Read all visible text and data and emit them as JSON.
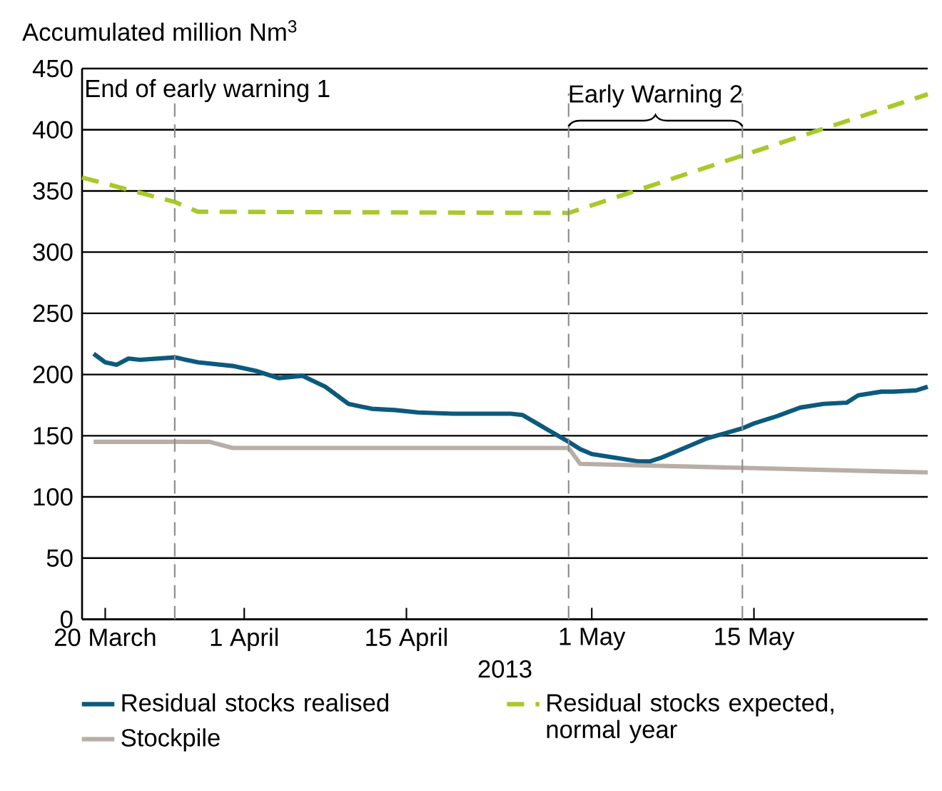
{
  "chart_data": {
    "type": "line",
    "ylabel": "Accumulated million Nm$^{3}$",
    "xlabel": "2013",
    "xlim": [
      "2013-03-18",
      "2013-05-30"
    ],
    "xticks": [
      {
        "value": "2013-03-20",
        "label": "20 March"
      },
      {
        "value": "2013-04-01",
        "label": "1 April"
      },
      {
        "value": "2013-04-15",
        "label": "15 April"
      },
      {
        "value": "2013-05-01",
        "label": "1 May"
      },
      {
        "value": "2013-05-15",
        "label": "15 May"
      }
    ],
    "ylim": [
      0,
      450
    ],
    "yticks": [
      0,
      50,
      100,
      150,
      200,
      250,
      300,
      350,
      400,
      450
    ],
    "grid": "y",
    "legend": "bottom",
    "marker": "none",
    "series": [
      {
        "name": "Residual stocks realised",
        "color": "#0b5a7d",
        "line_style": "solid",
        "x": [
          "2013-03-19",
          "2013-03-20",
          "2013-03-21",
          "2013-03-22",
          "2013-03-23",
          "2013-03-26",
          "2013-03-28",
          "2013-03-31",
          "2013-04-02",
          "2013-04-04",
          "2013-04-06",
          "2013-04-08",
          "2013-04-10",
          "2013-04-12",
          "2013-04-14",
          "2013-04-16",
          "2013-04-19",
          "2013-04-24",
          "2013-04-25",
          "2013-04-27",
          "2013-04-29",
          "2013-04-30",
          "2013-05-01",
          "2013-05-03",
          "2013-05-05",
          "2013-05-06",
          "2013-05-07",
          "2013-05-09",
          "2013-05-11",
          "2013-05-14",
          "2013-05-15",
          "2013-05-17",
          "2013-05-19",
          "2013-05-21",
          "2013-05-23",
          "2013-05-24",
          "2013-05-26",
          "2013-05-27",
          "2013-05-29",
          "2013-05-30"
        ],
        "values": [
          217,
          210,
          208,
          213,
          212,
          214,
          210,
          207,
          203,
          197,
          199,
          190,
          176,
          172,
          171,
          169,
          168,
          168,
          167,
          156,
          145,
          139,
          135,
          132,
          129,
          129,
          132,
          140,
          148,
          156,
          160,
          166,
          173,
          176,
          177,
          183,
          186,
          186,
          187,
          190
        ]
      },
      {
        "name": "Residual stocks expected, normal year",
        "color": "#a8c92a",
        "line_style": "dashed",
        "x": [
          "2013-03-18",
          "2013-03-26",
          "2013-03-28",
          "2013-04-29",
          "2013-05-30"
        ],
        "values": [
          361,
          341,
          333,
          332,
          429
        ]
      },
      {
        "name": "Stockpile",
        "color": "#b8aea6",
        "line_style": "solid",
        "x": [
          "2013-03-19",
          "2013-03-29",
          "2013-03-31",
          "2013-04-29",
          "2013-04-30",
          "2013-05-30"
        ],
        "values": [
          145,
          145,
          140,
          140,
          127,
          120
        ]
      }
    ],
    "ref_lines": [
      {
        "axis": "x",
        "value": "2013-03-26",
        "label": "End of early warning 1",
        "color": "#8c8c8c",
        "line_style": "dashed"
      },
      {
        "axis": "x",
        "value": "2013-04-29",
        "color": "#8c8c8c",
        "line_style": "dashed"
      },
      {
        "axis": "x",
        "value": "2013-05-14",
        "color": "#8c8c8c",
        "line_style": "dashed"
      }
    ],
    "annotations": [
      "Early Warning 2"
    ]
  }
}
